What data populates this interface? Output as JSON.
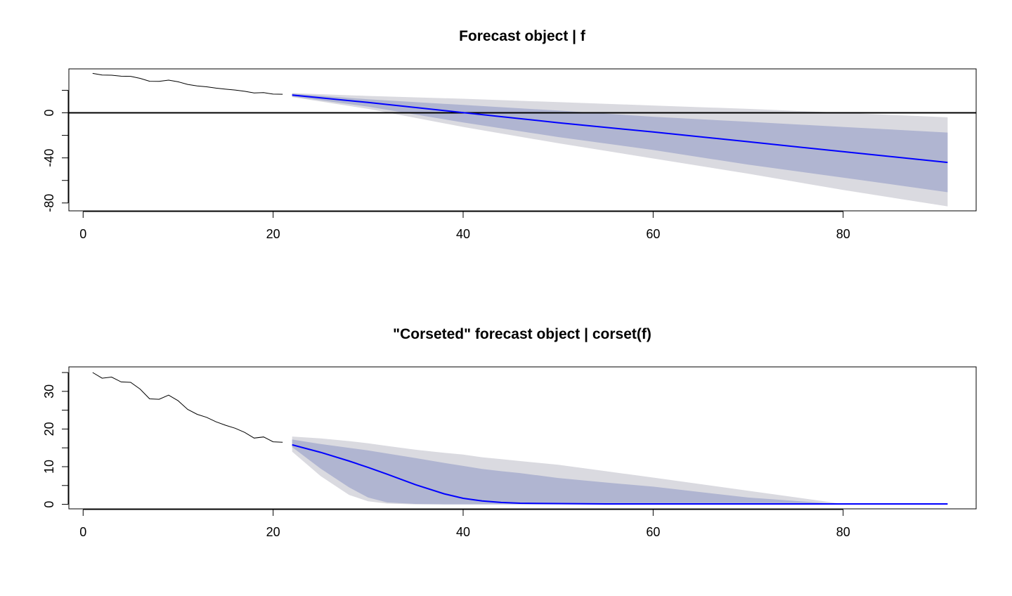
{
  "chart_data": [
    {
      "type": "line",
      "title": "Forecast object | f",
      "xlabel": "",
      "ylabel": "",
      "xlim": [
        -1.5,
        94
      ],
      "ylim": [
        -87,
        39
      ],
      "x_ticks": [
        0,
        20,
        40,
        60,
        80
      ],
      "y_ticks": [
        -80,
        -60,
        -40,
        -20,
        0,
        20
      ],
      "y_tick_labels": [
        "-80",
        "",
        "-40",
        "",
        "0",
        ""
      ],
      "hline": 0,
      "colors": {
        "history": "#000000",
        "forecast": "#0000ff",
        "band80": "#b0b5d1",
        "band95": "#dadae0",
        "zero_line": "#000000"
      },
      "history": {
        "x": [
          1,
          2,
          3,
          4,
          5,
          6,
          7,
          8,
          9,
          10,
          11,
          12,
          13,
          14,
          15,
          16,
          17,
          18,
          19,
          20,
          21
        ],
        "y": [
          35,
          33.5,
          33.4,
          32.5,
          32.4,
          30.6,
          28,
          27.9,
          29,
          27.5,
          25.2,
          23.9,
          23.1,
          21.9,
          21,
          20.2,
          19.1,
          17.6,
          17.9,
          16.6,
          16.5
        ]
      },
      "forecast": {
        "x": [
          22,
          30,
          40,
          50,
          60,
          70,
          80,
          91
        ],
        "mean": [
          15.8,
          9.2,
          0.2,
          -8.8,
          -17,
          -25.6,
          -34.5,
          -44
        ],
        "lo80": [
          14.5,
          5.5,
          -8.5,
          -21.5,
          -33,
          -46,
          -57.5,
          -70.5
        ],
        "hi80": [
          17,
          12,
          7,
          2,
          -3.5,
          -8,
          -12.5,
          -17.5
        ],
        "lo95": [
          14,
          3.5,
          -12.5,
          -27,
          -40.5,
          -54,
          -68.5,
          -83
        ],
        "hi95": [
          17.5,
          15,
          12.5,
          9.5,
          6.5,
          3.5,
          0,
          -4
        ]
      }
    },
    {
      "type": "line",
      "title": "\"Corseted\" forecast object | corset(f)",
      "xlabel": "",
      "ylabel": "",
      "xlim": [
        -1.5,
        94
      ],
      "ylim": [
        -1.2,
        36.5
      ],
      "x_ticks": [
        0,
        20,
        40,
        60,
        80
      ],
      "y_ticks": [
        0,
        5,
        10,
        15,
        20,
        25,
        30,
        35
      ],
      "y_tick_labels": [
        "0",
        "",
        "10",
        "",
        "20",
        "",
        "30",
        ""
      ],
      "colors": {
        "history": "#000000",
        "forecast": "#0000ff",
        "band80": "#b0b5d1",
        "band95": "#dadae0"
      },
      "history": {
        "x": [
          1,
          2,
          3,
          4,
          5,
          6,
          7,
          8,
          9,
          10,
          11,
          12,
          13,
          14,
          15,
          16,
          17,
          18,
          19,
          20,
          21
        ],
        "y": [
          35,
          33.5,
          33.8,
          32.5,
          32.4,
          30.6,
          28,
          27.9,
          29,
          27.5,
          25.2,
          23.9,
          23.1,
          21.9,
          21,
          20.2,
          19.1,
          17.6,
          17.9,
          16.6,
          16.5
        ]
      },
      "forecast": {
        "x": [
          22,
          25,
          28,
          30,
          32,
          35,
          38,
          40,
          42,
          44,
          46,
          50,
          55,
          60,
          70,
          80,
          91
        ],
        "mean": [
          15.8,
          13.8,
          11.5,
          9.8,
          8,
          5.2,
          2.8,
          1.6,
          0.9,
          0.5,
          0.3,
          0.2,
          0.1,
          0.1,
          0.1,
          0.1,
          0.1
        ],
        "lo80": [
          15.2,
          9.5,
          4.5,
          1.8,
          0.5,
          0.1,
          0,
          0,
          0,
          0,
          0,
          0,
          0,
          0,
          0,
          0,
          0
        ],
        "hi80": [
          17.2,
          16,
          15,
          14.3,
          13.5,
          12.3,
          11,
          10.2,
          9.4,
          8.8,
          8.3,
          7,
          5.8,
          4.7,
          1.8,
          0,
          0
        ],
        "lo95": [
          14,
          7.5,
          2.5,
          0.8,
          0.2,
          0,
          0,
          0,
          0,
          0,
          0,
          0,
          0,
          0,
          0,
          0,
          0
        ],
        "hi95": [
          18,
          17.5,
          16.8,
          16.2,
          15.5,
          14.5,
          13.7,
          13.2,
          12.5,
          12,
          11.5,
          10.5,
          8.8,
          7.1,
          3.6,
          0.1,
          0
        ]
      }
    }
  ]
}
